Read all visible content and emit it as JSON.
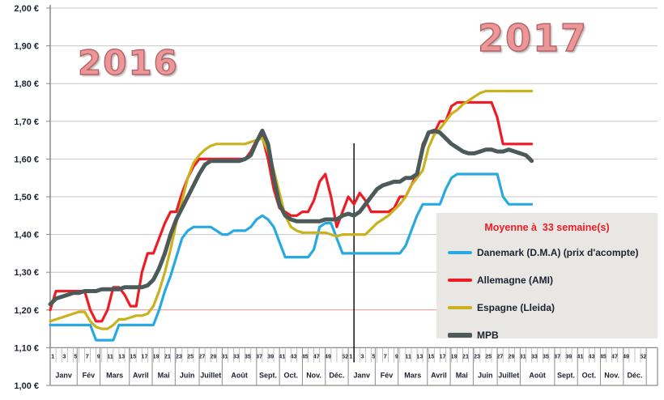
{
  "year_labels": [
    {
      "text": "2016"
    },
    {
      "text": "2017"
    }
  ],
  "legend": {
    "title": "Moyenne à  33 semaine(s)",
    "title_color": "#ee1c25",
    "background": "#e9e7e3",
    "items": [
      {
        "label": "Danemark (D.M.A) (prix d'acompte)",
        "color": "#29a9e1",
        "thick": false
      },
      {
        "label": "Allemagne (AMI)",
        "color": "#ee1c25",
        "thick": false
      },
      {
        "label": "Espagne (Lleida)",
        "color": "#c9b21e",
        "thick": false
      },
      {
        "label": "MPB",
        "color": "#4d5a5a",
        "thick": true
      }
    ]
  },
  "chart_data": {
    "type": "line",
    "title": "",
    "grid": true,
    "legend_position": "bottom-right",
    "colors": {
      "gridline": "#c8c6c6",
      "gridline_highlight": "#dd9494",
      "axis": "#8a8a8a",
      "axis_text": "#1b2130",
      "year_divider": "#000000"
    },
    "y_axis": {
      "min": 1.0,
      "max": 2.0,
      "step": 0.1,
      "currency": "EUR",
      "highlighted_gridline_value": 1.2,
      "ticks": [
        {
          "value": 2.0,
          "label": "2,00 €"
        },
        {
          "value": 1.9,
          "label": "1,90 €"
        },
        {
          "value": 1.8,
          "label": "1,80 €"
        },
        {
          "value": 1.7,
          "label": "1,70 €"
        },
        {
          "value": 1.6,
          "label": "1,60 €"
        },
        {
          "value": 1.5,
          "label": "1,50 €"
        },
        {
          "value": 1.4,
          "label": "1,40 €"
        },
        {
          "value": 1.3,
          "label": "1,30 €"
        },
        {
          "value": 1.2,
          "label": "1,20 €"
        },
        {
          "value": 1.1,
          "label": "1,10 €"
        },
        {
          "value": 1.0,
          "label": "1,00 €"
        }
      ]
    },
    "x_axis": {
      "unit": "week",
      "weeks_per_year": 52,
      "labeled_weeks": [
        1,
        3,
        5,
        7,
        9,
        11,
        13,
        15,
        17,
        19,
        21,
        23,
        25,
        27,
        29,
        31,
        33,
        35,
        37,
        39,
        41,
        43,
        45,
        47,
        49,
        52
      ],
      "month_labels": [
        "Janv",
        "Fév",
        "Mars",
        "Avril",
        "Mai",
        "Juin",
        "Juillet",
        "Août",
        "Sept.",
        "Oct.",
        "Nov.",
        "Déc."
      ],
      "month_boundaries_weeks": [
        0,
        4.7,
        8.7,
        13.8,
        17.8,
        21.8,
        26,
        30,
        36,
        40,
        44,
        48,
        52
      ],
      "years": [
        "2016",
        "2017"
      ],
      "year_divider_after_week": 53
    },
    "series": [
      {
        "name": "Danemark (D.M.A) (prix d'acompte)",
        "slug": "danemark",
        "color": "#29a9e1",
        "width": 3.2,
        "values_2016": [
          1.16,
          1.16,
          1.16,
          1.16,
          1.16,
          1.16,
          1.16,
          1.16,
          1.12,
          1.12,
          1.12,
          1.12,
          1.16,
          1.16,
          1.16,
          1.16,
          1.16,
          1.16,
          1.16,
          1.2,
          1.25,
          1.29,
          1.34,
          1.39,
          1.41,
          1.42,
          1.42,
          1.42,
          1.42,
          1.41,
          1.4,
          1.4,
          1.41,
          1.41,
          1.41,
          1.42,
          1.44,
          1.45,
          1.44,
          1.42,
          1.38,
          1.34,
          1.34,
          1.34,
          1.34,
          1.34,
          1.36,
          1.42,
          1.43,
          1.43,
          1.39,
          1.35
        ],
        "values_2017": [
          1.35,
          1.35,
          1.35,
          1.35,
          1.35,
          1.35,
          1.35,
          1.35,
          1.35,
          1.35,
          1.37,
          1.41,
          1.45,
          1.48,
          1.48,
          1.48,
          1.48,
          1.52,
          1.55,
          1.56,
          1.56,
          1.56,
          1.56,
          1.56,
          1.56,
          1.56,
          1.56,
          1.5,
          1.48,
          1.48,
          1.48,
          1.48,
          1.48
        ]
      },
      {
        "name": "Allemagne (AMI)",
        "slug": "allemagne",
        "color": "#ee1c25",
        "width": 3.2,
        "values_2016": [
          1.2,
          1.25,
          1.25,
          1.25,
          1.25,
          1.25,
          1.25,
          1.2,
          1.17,
          1.17,
          1.2,
          1.26,
          1.26,
          1.24,
          1.21,
          1.21,
          1.3,
          1.35,
          1.35,
          1.39,
          1.43,
          1.46,
          1.46,
          1.51,
          1.55,
          1.58,
          1.6,
          1.6,
          1.6,
          1.6,
          1.6,
          1.6,
          1.6,
          1.6,
          1.6,
          1.62,
          1.65,
          1.66,
          1.6,
          1.52,
          1.47,
          1.46,
          1.45,
          1.45,
          1.46,
          1.46,
          1.49,
          1.54,
          1.56,
          1.5,
          1.42,
          1.46
        ],
        "values_2017": [
          1.5,
          1.48,
          1.51,
          1.49,
          1.46,
          1.46,
          1.46,
          1.46,
          1.47,
          1.5,
          1.5,
          1.53,
          1.56,
          1.64,
          1.67,
          1.67,
          1.7,
          1.7,
          1.74,
          1.75,
          1.75,
          1.75,
          1.75,
          1.75,
          1.75,
          1.75,
          1.71,
          1.64,
          1.64,
          1.64,
          1.64,
          1.64,
          1.64
        ]
      },
      {
        "name": "Espagne (Lleida)",
        "slug": "espagne",
        "color": "#c9b21e",
        "width": 3.2,
        "values_2016": [
          1.17,
          1.175,
          1.18,
          1.185,
          1.19,
          1.195,
          1.195,
          1.17,
          1.155,
          1.15,
          1.15,
          1.16,
          1.175,
          1.175,
          1.18,
          1.185,
          1.185,
          1.19,
          1.21,
          1.25,
          1.3,
          1.36,
          1.43,
          1.49,
          1.55,
          1.59,
          1.61,
          1.625,
          1.635,
          1.64,
          1.64,
          1.64,
          1.64,
          1.64,
          1.64,
          1.645,
          1.65,
          1.655,
          1.62,
          1.57,
          1.51,
          1.45,
          1.42,
          1.41,
          1.405,
          1.405,
          1.405,
          1.405,
          1.405,
          1.4,
          1.395,
          1.4
        ],
        "values_2017": [
          1.4,
          1.4,
          1.4,
          1.4,
          1.415,
          1.43,
          1.44,
          1.45,
          1.465,
          1.48,
          1.5,
          1.53,
          1.55,
          1.57,
          1.63,
          1.665,
          1.68,
          1.7,
          1.72,
          1.73,
          1.745,
          1.755,
          1.765,
          1.775,
          1.78,
          1.78,
          1.78,
          1.78,
          1.78,
          1.78,
          1.78,
          1.78,
          1.78
        ]
      },
      {
        "name": "MPB",
        "slug": "mpb",
        "color": "#4d5a5a",
        "width": 5,
        "values_2016": [
          1.215,
          1.23,
          1.235,
          1.24,
          1.245,
          1.245,
          1.25,
          1.25,
          1.25,
          1.255,
          1.255,
          1.255,
          1.255,
          1.26,
          1.26,
          1.26,
          1.26,
          1.265,
          1.28,
          1.31,
          1.35,
          1.4,
          1.44,
          1.47,
          1.5,
          1.53,
          1.56,
          1.585,
          1.595,
          1.595,
          1.595,
          1.595,
          1.595,
          1.595,
          1.6,
          1.61,
          1.645,
          1.675,
          1.64,
          1.55,
          1.48,
          1.45,
          1.44,
          1.435,
          1.435,
          1.435,
          1.435,
          1.435,
          1.44,
          1.44,
          1.44,
          1.45
        ],
        "values_2017": [
          1.455,
          1.45,
          1.46,
          1.48,
          1.5,
          1.52,
          1.53,
          1.535,
          1.54,
          1.54,
          1.55,
          1.55,
          1.56,
          1.63,
          1.67,
          1.675,
          1.67,
          1.655,
          1.64,
          1.63,
          1.62,
          1.615,
          1.615,
          1.62,
          1.625,
          1.625,
          1.62,
          1.62,
          1.625,
          1.62,
          1.615,
          1.61,
          1.595
        ]
      }
    ]
  }
}
